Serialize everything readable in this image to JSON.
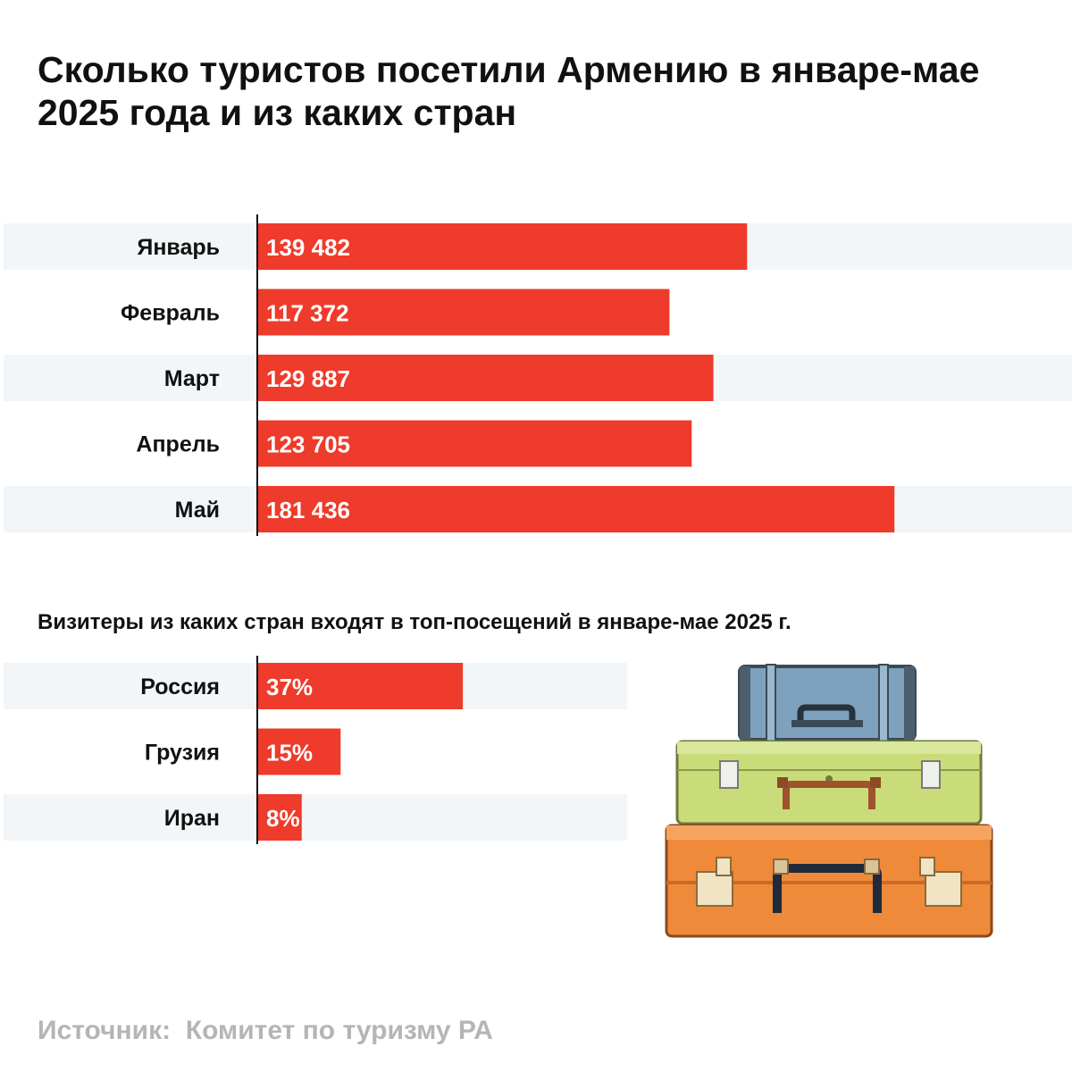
{
  "title": "Сколько туристов посетили Армению в январе-мае 2025 года и из каких стран",
  "subtitle": "Визитеры из каких стран входят в топ-посещений в январе-мае 2025 г.",
  "source": "Источник:  Комитет по туризму РА",
  "colors": {
    "bar": "#ee3b2b",
    "row_band": "#f3f6f8",
    "axis": "#111111",
    "source_text": "#b5b5b5"
  },
  "chart_data": [
    {
      "type": "bar",
      "orientation": "horizontal",
      "title": "",
      "categories": [
        "Январь",
        "Февраль",
        "Март",
        "Апрель",
        "Май"
      ],
      "values": [
        139482,
        117372,
        129887,
        123705,
        181436
      ],
      "value_labels": [
        "139 482",
        "117 372",
        "129 887",
        "123 705",
        "181 436"
      ],
      "xlim": [
        0,
        232000
      ],
      "grid": false,
      "legend": "none"
    },
    {
      "type": "bar",
      "orientation": "horizontal",
      "title": "Визитеры из каких стран входят в топ-посещений в январе-мае 2025 г.",
      "categories": [
        "Россия",
        "Грузия",
        "Иран"
      ],
      "values": [
        37,
        15,
        8
      ],
      "value_labels": [
        "37%",
        "15%",
        "8%"
      ],
      "unit": "%",
      "xlim": [
        0,
        100
      ],
      "grid": false,
      "legend": "none"
    }
  ],
  "illustration": {
    "name": "suitcase-stack-illustration"
  }
}
